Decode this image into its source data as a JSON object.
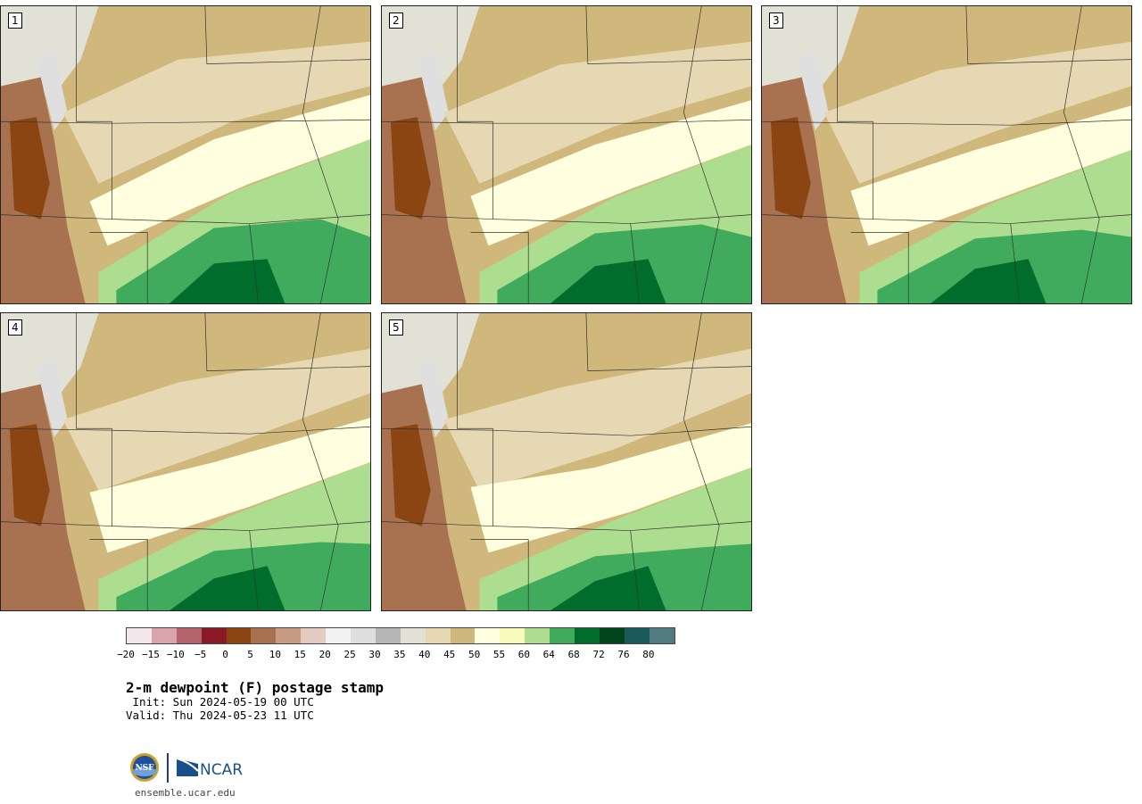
{
  "panels": [
    {
      "label": "1",
      "variant": 0
    },
    {
      "label": "2",
      "variant": 1
    },
    {
      "label": "3",
      "variant": 2
    },
    {
      "label": "4",
      "variant": 3
    },
    {
      "label": "5",
      "variant": 4
    }
  ],
  "colorbar": {
    "colors": [
      "#f5e8ec",
      "#d9a4ab",
      "#b4636b",
      "#8b1a25",
      "#8b4513",
      "#a87250",
      "#c79c83",
      "#e3cbbf",
      "#f2f2f2",
      "#dfdfdf",
      "#b5b5b5",
      "#e1e1d6",
      "#e6d8b2",
      "#d0b77b",
      "#ffffe0",
      "#f7fcb9",
      "#addd8e",
      "#41ab5d",
      "#006d2c",
      "#00441b",
      "#1b5a5a",
      "#527b80"
    ],
    "ticks": [
      "−20",
      "−15",
      "−10",
      "−5",
      "0",
      "5",
      "10",
      "15",
      "20",
      "25",
      "30",
      "35",
      "40",
      "45",
      "50",
      "55",
      "60",
      "64",
      "68",
      "72",
      "76",
      "80"
    ]
  },
  "title": "2-m dewpoint (F) postage stamp",
  "init": " Init: Sun 2024-05-19 00 UTC",
  "valid": "Valid: Thu 2024-05-23 11 UTC",
  "url": "ensemble.ucar.edu"
}
